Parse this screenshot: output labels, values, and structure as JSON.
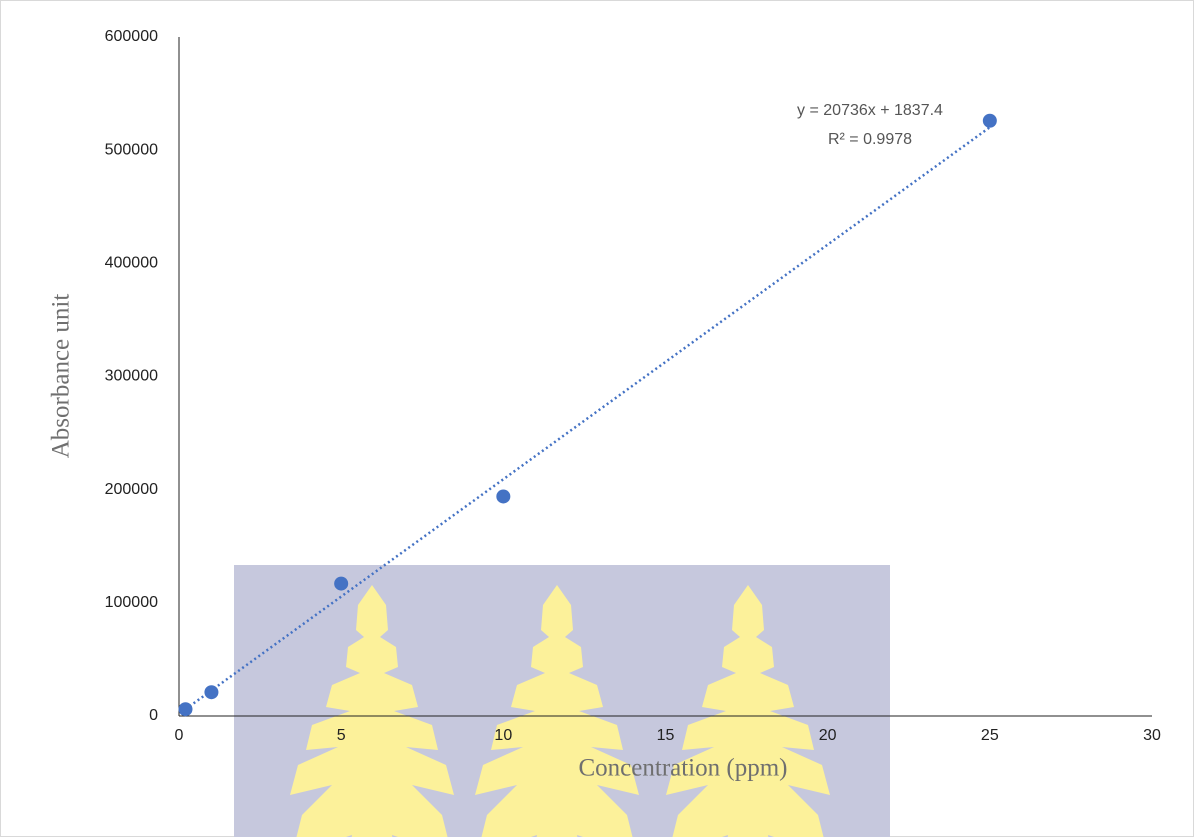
{
  "chart_data": {
    "type": "scatter",
    "x_label": "Concentration (ppm)",
    "y_label": "Absorbance unit",
    "series": [
      {
        "color": "#4472c4",
        "x": [
          0.2,
          1,
          5,
          10,
          25
        ],
        "values": [
          6000,
          21000,
          117000,
          194000,
          526000
        ]
      }
    ],
    "trendline": {
      "equation": "y = 20736x + 1837.4",
      "r_squared": "R² = 0.9978",
      "slope": 20736,
      "intercept": 1837.4,
      "color": "#4472c4"
    },
    "xlim": [
      0,
      30
    ],
    "xticks": [
      0,
      5,
      10,
      15,
      20,
      25,
      30
    ],
    "ylim": [
      0,
      600000
    ],
    "yticks": [
      0,
      100000,
      200000,
      300000,
      400000,
      500000,
      600000
    ],
    "grid": false
  }
}
